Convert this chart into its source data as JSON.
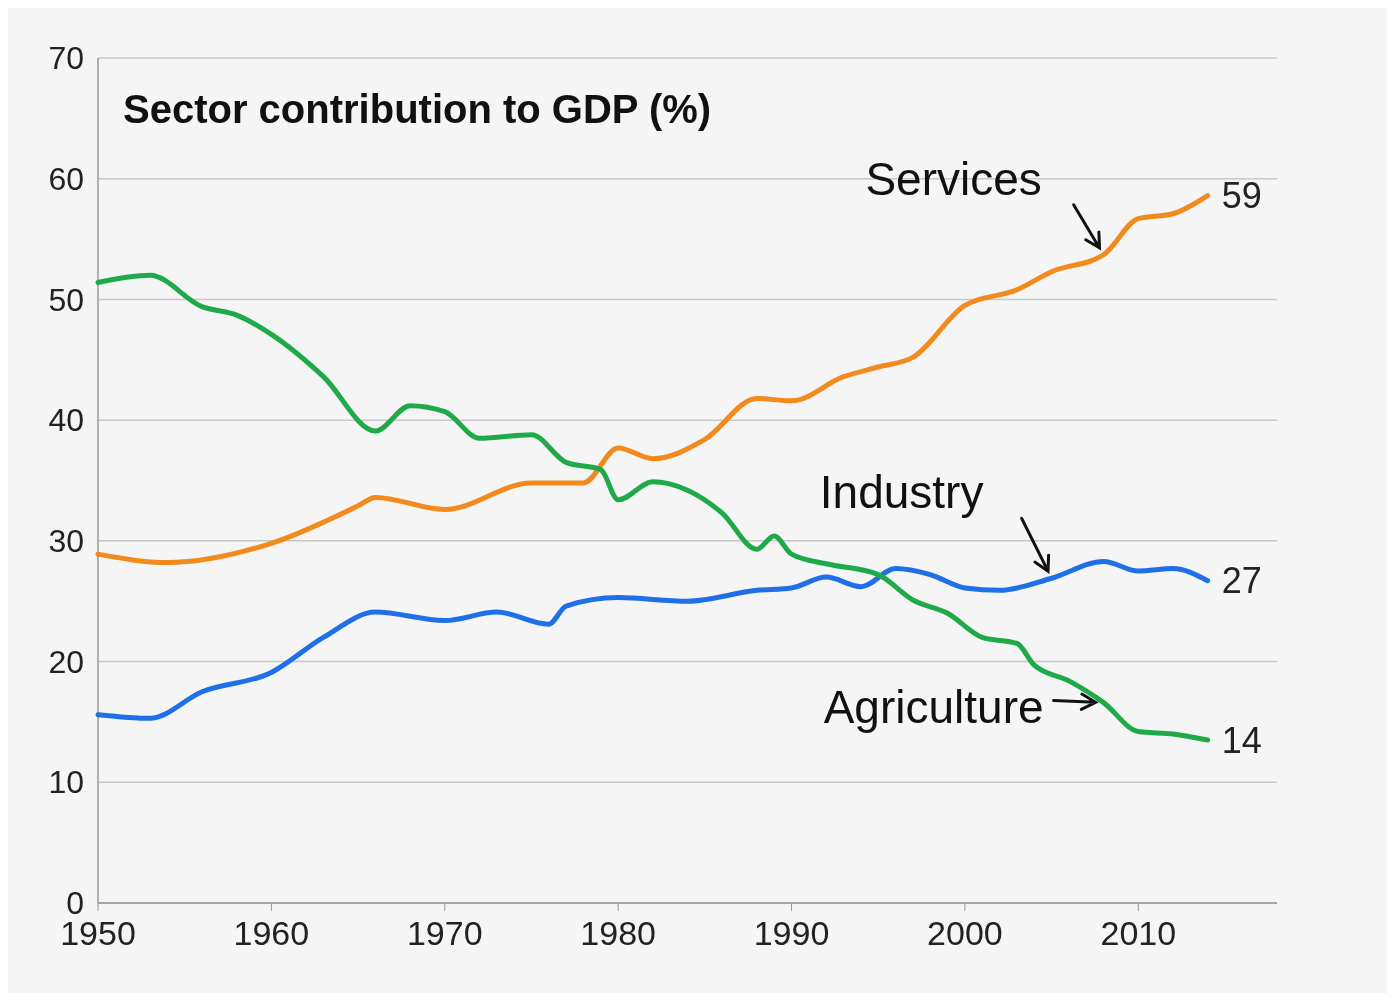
{
  "chart_data": {
    "type": "line",
    "title": "Sector contribution to GDP (%)",
    "xlim": [
      1950,
      2018
    ],
    "xticks": [
      1950,
      1960,
      1970,
      1980,
      1990,
      2000,
      2010
    ],
    "ylim": [
      0,
      70
    ],
    "yticks": [
      0,
      10,
      20,
      30,
      40,
      50,
      60,
      70
    ],
    "grid": "y",
    "marker": "none",
    "line_style": "solid",
    "series": [
      {
        "name": "Services",
        "color": "#f28a1e",
        "x": [
          1950,
          1954,
          1960,
          1965,
          1966,
          1970,
          1975,
          1978,
          1980,
          1982,
          1985,
          1988,
          1990,
          1993,
          1995,
          1997,
          2000,
          2003,
          2005,
          2008,
          2010,
          2012,
          2014
        ],
        "values": [
          28.9,
          28.2,
          29.8,
          32.9,
          33.6,
          32.6,
          34.8,
          34.8,
          37.7,
          36.8,
          38.4,
          41.8,
          41.6,
          43.6,
          44.4,
          45.2,
          49.5,
          50.8,
          52.3,
          53.7,
          56.7,
          57.1,
          58.6
        ],
        "value_labels": [
          null,
          null,
          null,
          null,
          null,
          null,
          null,
          null,
          null,
          null,
          null,
          null,
          null,
          null,
          null,
          null,
          null,
          null,
          null,
          null,
          null,
          null,
          "59"
        ]
      },
      {
        "name": "Industry",
        "color": "#1f6fe8",
        "x": [
          1950,
          1953,
          1956,
          1960,
          1963,
          1966,
          1970,
          1973,
          1976,
          1977,
          1980,
          1984,
          1988,
          1990,
          1992,
          1994,
          1996,
          1998,
          2000,
          2002,
          2005,
          2008,
          2010,
          2012,
          2014
        ],
        "values": [
          15.6,
          15.3,
          17.5,
          19.1,
          22.0,
          24.1,
          23.4,
          24.1,
          23.1,
          24.6,
          25.3,
          25.0,
          25.9,
          26.1,
          27.0,
          26.2,
          27.7,
          27.2,
          26.1,
          25.9,
          26.9,
          28.3,
          27.5,
          27.7,
          26.7
        ],
        "value_labels": [
          null,
          null,
          null,
          null,
          null,
          null,
          null,
          null,
          null,
          null,
          null,
          null,
          null,
          null,
          null,
          null,
          null,
          null,
          null,
          null,
          null,
          null,
          null,
          null,
          "27"
        ]
      },
      {
        "name": "Agriculture",
        "color": "#1faa4a",
        "x": [
          1950,
          1953,
          1956,
          1958,
          1960,
          1963,
          1966,
          1968,
          1970,
          1972,
          1975,
          1977,
          1979,
          1980,
          1982,
          1984,
          1986,
          1988,
          1989,
          1990,
          1992,
          1995,
          1997,
          1999,
          2001,
          2003,
          2004,
          2006,
          2008,
          2010,
          2012,
          2014
        ],
        "values": [
          51.4,
          52.0,
          49.4,
          48.7,
          47.1,
          43.6,
          39.1,
          41.2,
          40.7,
          38.5,
          38.8,
          36.5,
          35.9,
          33.4,
          34.9,
          34.2,
          32.3,
          29.3,
          30.4,
          28.9,
          28.1,
          27.2,
          25.1,
          24.0,
          22.0,
          21.5,
          19.7,
          18.4,
          16.6,
          14.2,
          14.0,
          13.5
        ],
        "value_labels": [
          null,
          null,
          null,
          null,
          null,
          null,
          null,
          null,
          null,
          null,
          null,
          null,
          null,
          null,
          null,
          null,
          null,
          null,
          null,
          null,
          null,
          null,
          null,
          null,
          null,
          null,
          null,
          null,
          null,
          null,
          null,
          "14"
        ]
      }
    ]
  }
}
